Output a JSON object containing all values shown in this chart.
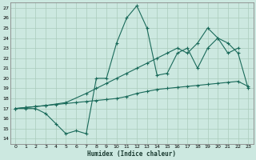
{
  "xlabel": "Humidex (Indice chaleur)",
  "xlim": [
    -0.5,
    23.5
  ],
  "ylim": [
    13.5,
    27.5
  ],
  "xticks": [
    0,
    1,
    2,
    3,
    4,
    5,
    6,
    7,
    8,
    9,
    10,
    11,
    12,
    13,
    14,
    15,
    16,
    17,
    18,
    19,
    20,
    21,
    22,
    23
  ],
  "yticks": [
    14,
    15,
    16,
    17,
    18,
    19,
    20,
    21,
    22,
    23,
    24,
    25,
    26,
    27
  ],
  "background_color": "#cce8e0",
  "grid_color": "#aaccbb",
  "line_color": "#1a6a5a",
  "lines": [
    {
      "x": [
        0,
        1,
        2,
        3,
        4,
        5,
        6,
        7,
        8,
        9,
        10,
        11,
        12,
        13,
        14,
        15,
        16,
        17,
        18,
        19,
        20,
        21,
        22
      ],
      "y": [
        17.0,
        17.0,
        17.0,
        16.5,
        15.5,
        14.5,
        14.8,
        14.5,
        20.0,
        20.0,
        23.5,
        26.0,
        27.2,
        25.0,
        20.3,
        20.5,
        22.5,
        23.0,
        21.0,
        23.0,
        24.0,
        22.5,
        23.0
      ]
    },
    {
      "x": [
        0,
        1,
        2,
        3,
        4,
        5,
        6,
        7,
        8,
        9,
        10,
        11,
        12,
        13,
        14,
        15,
        16,
        17,
        18,
        19,
        20,
        21,
        22,
        23
      ],
      "y": [
        17.0,
        17.1,
        17.2,
        17.3,
        17.4,
        17.5,
        17.6,
        17.7,
        17.8,
        17.9,
        18.0,
        18.2,
        18.5,
        18.7,
        18.9,
        19.0,
        19.1,
        19.2,
        19.3,
        19.4,
        19.5,
        19.6,
        19.7,
        19.2
      ]
    },
    {
      "x": [
        0,
        1,
        2,
        3,
        5,
        7,
        8,
        9,
        10,
        11,
        12,
        13,
        14,
        15,
        16,
        17,
        18,
        19,
        20,
        21,
        22,
        23
      ],
      "y": [
        17.0,
        17.1,
        17.2,
        17.3,
        17.6,
        18.5,
        19.0,
        19.5,
        20.0,
        20.5,
        21.0,
        21.5,
        22.0,
        22.5,
        23.0,
        22.5,
        23.5,
        25.0,
        24.0,
        23.5,
        22.5,
        19.0
      ]
    }
  ]
}
